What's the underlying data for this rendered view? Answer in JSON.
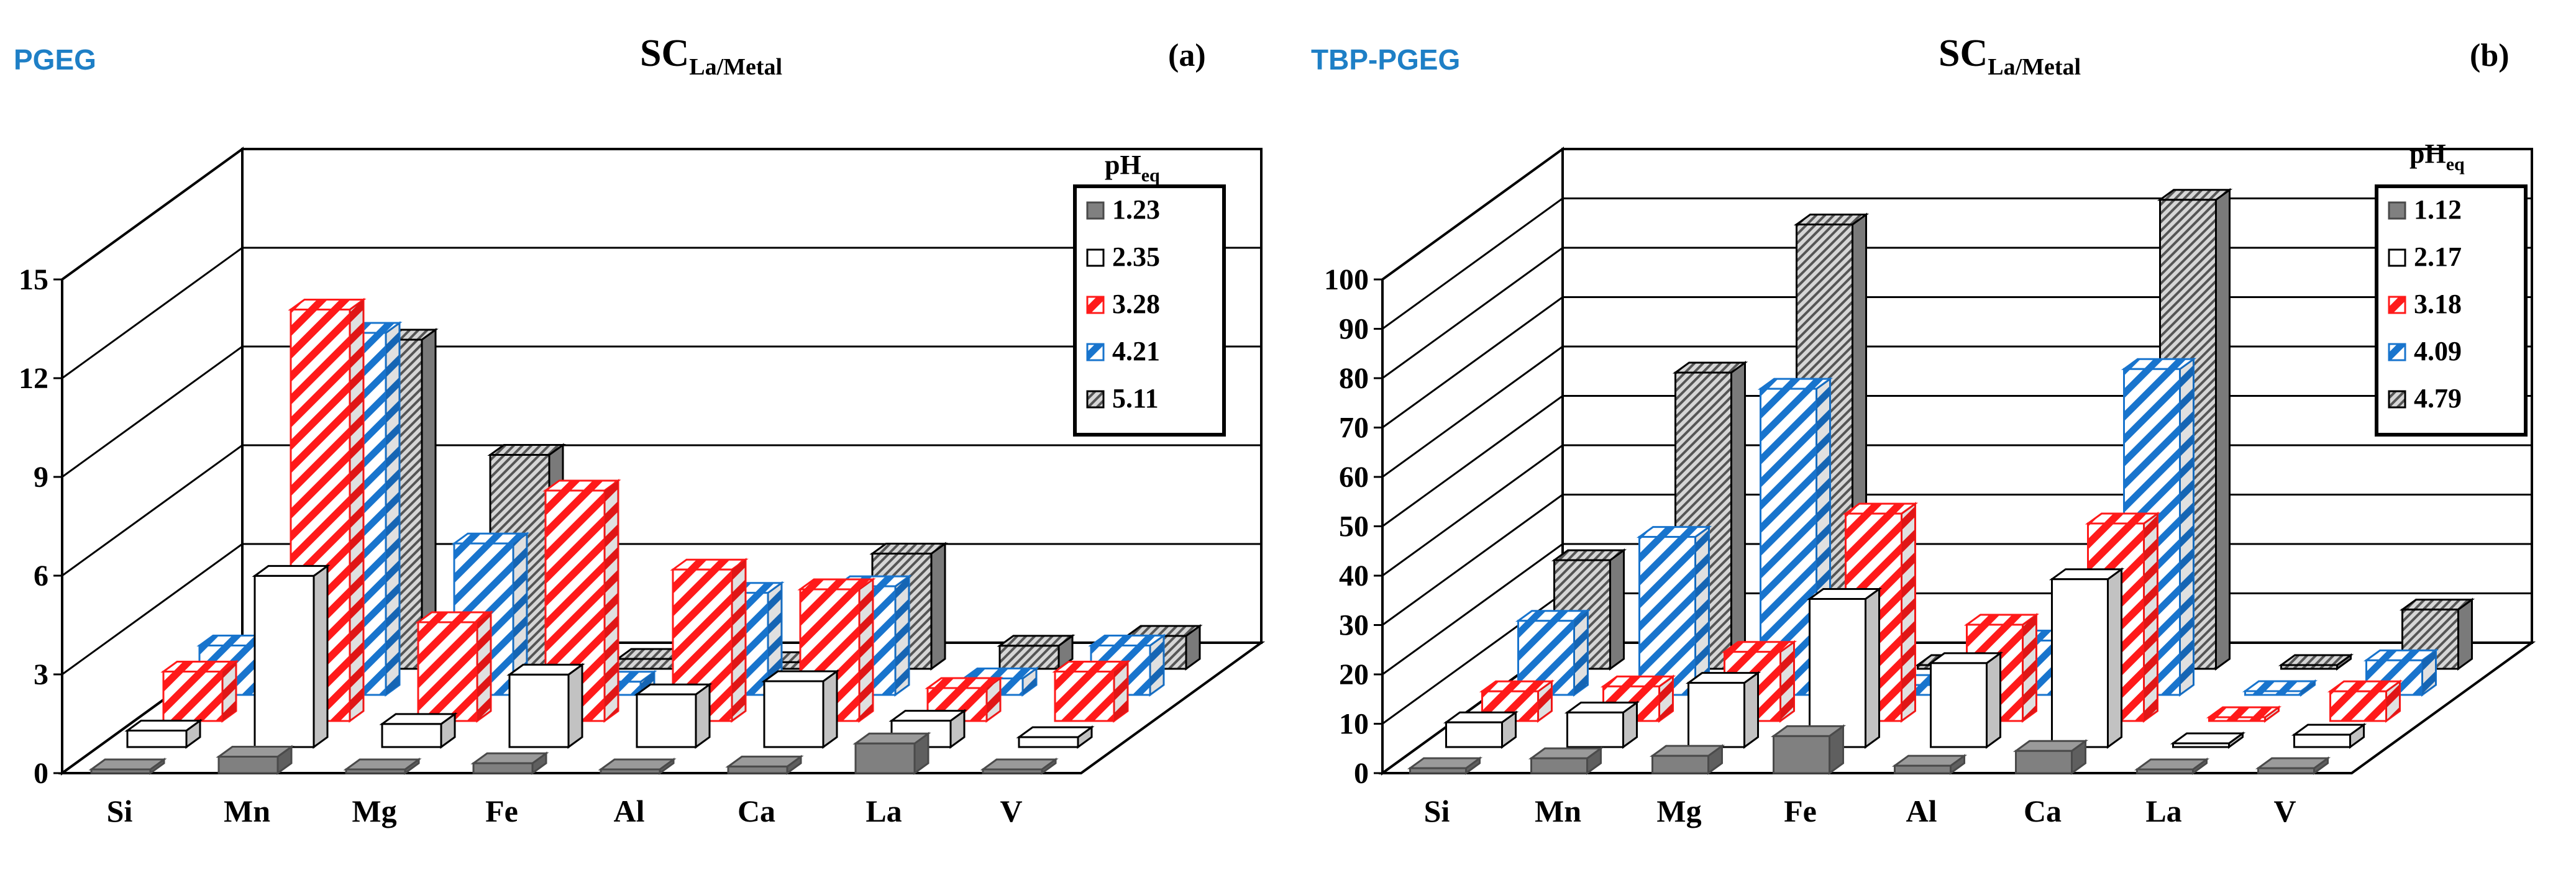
{
  "chart_data": [
    {
      "type": "bar-3d",
      "panel_label": "(a)",
      "corner_tag": "PGEG",
      "title_main": "SC",
      "title_sub": "La/Metal",
      "categories": [
        "Si",
        "Mn",
        "Mg",
        "Fe",
        "Al",
        "Ca",
        "La",
        "V"
      ],
      "yticks": [
        "0",
        "3",
        "6",
        "9",
        "12",
        "15"
      ],
      "ylim": [
        0,
        15
      ],
      "legend_title_main": "pH",
      "legend_title_sub": "eq",
      "series": [
        {
          "name": "1.23",
          "values": [
            0.05,
            0.5,
            0.1,
            0.3,
            0.1,
            0.2,
            0.9,
            0.1
          ]
        },
        {
          "name": "2.35",
          "values": [
            0.5,
            5.2,
            0.7,
            2.2,
            1.6,
            2.0,
            0.8,
            0.3
          ]
        },
        {
          "name": "3.28",
          "values": [
            1.5,
            12.5,
            3.0,
            7.0,
            4.6,
            4.0,
            1.0,
            1.5
          ]
        },
        {
          "name": "4.21",
          "values": [
            1.5,
            11.0,
            4.6,
            0.4,
            3.1,
            3.3,
            0.5,
            1.5
          ]
        },
        {
          "name": "5.11",
          "values": [
            0.3,
            10.0,
            6.5,
            0.3,
            0.2,
            3.5,
            0.7,
            1.0
          ]
        }
      ]
    },
    {
      "type": "bar-3d",
      "panel_label": "(b)",
      "corner_tag": "TBP-PGEG",
      "title_main": "SC",
      "title_sub": "La/Metal",
      "categories": [
        "Si",
        "Mn",
        "Mg",
        "Fe",
        "Al",
        "Ca",
        "La",
        "V"
      ],
      "yticks": [
        "0",
        "10",
        "20",
        "30",
        "40",
        "50",
        "60",
        "70",
        "80",
        "90",
        "100"
      ],
      "ylim": [
        0,
        100
      ],
      "legend_title_main": "pH",
      "legend_title_sub": "eq",
      "series": [
        {
          "name": "1.12",
          "values": [
            1.0,
            3.0,
            3.5,
            7.5,
            1.5,
            4.5,
            0.5,
            1.0
          ]
        },
        {
          "name": "2.17",
          "values": [
            5.0,
            7.0,
            13.0,
            30.0,
            17.0,
            34.0,
            0.5,
            2.5
          ]
        },
        {
          "name": "3.18",
          "values": [
            6.0,
            7.0,
            14.0,
            42.0,
            19.5,
            40.0,
            0.5,
            6.0
          ]
        },
        {
          "name": "4.09",
          "values": [
            15.0,
            32.0,
            62.0,
            2.0,
            11.0,
            66.0,
            0.5,
            7.0
          ]
        },
        {
          "name": "4.79",
          "values": [
            22.0,
            60.0,
            90.0,
            0.5,
            3.0,
            95.0,
            0.5,
            12.0
          ]
        }
      ]
    }
  ]
}
